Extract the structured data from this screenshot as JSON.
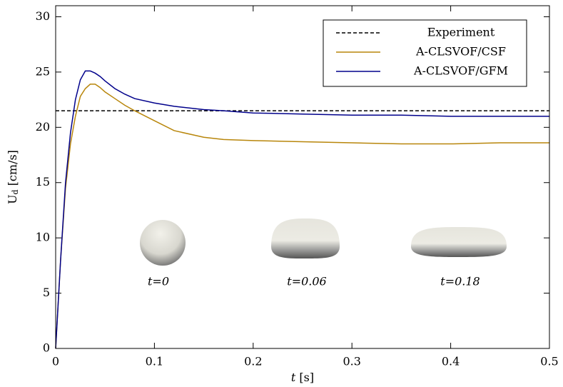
{
  "chart_data": {
    "type": "line",
    "x_label": "t [s]",
    "y_label": "Ud [cm/s]",
    "x": [
      0,
      0.005,
      0.01,
      0.015,
      0.02,
      0.025,
      0.03,
      0.035,
      0.04,
      0.045,
      0.05,
      0.06,
      0.07,
      0.08,
      0.1,
      0.12,
      0.15,
      0.17,
      0.2,
      0.25,
      0.3,
      0.35,
      0.4,
      0.45,
      0.5
    ],
    "hlines": [
      {
        "name": "Experiment",
        "color": "#000000",
        "value": 21.5,
        "linestyle": "dashed"
      }
    ],
    "series": [
      {
        "name": "A-CLSVOF/CSF",
        "color": "#b8860b",
        "values": [
          0,
          8,
          14.5,
          18.5,
          21,
          22.8,
          23.5,
          23.9,
          23.9,
          23.6,
          23.2,
          22.6,
          22,
          21.5,
          20.6,
          19.7,
          19.1,
          18.9,
          18.8,
          18.7,
          18.6,
          18.5,
          18.5,
          18.6,
          18.6
        ]
      },
      {
        "name": "A-CLSVOF/GFM",
        "color": "#00008b",
        "values": [
          0,
          8,
          15,
          19.5,
          22.5,
          24.3,
          25.1,
          25.1,
          24.9,
          24.6,
          24.2,
          23.5,
          23,
          22.6,
          22.2,
          21.9,
          21.6,
          21.5,
          21.3,
          21.2,
          21.1,
          21.1,
          21.0,
          21.0,
          21.0
        ]
      }
    ],
    "annotations": [
      "t=0",
      "t=0.06",
      "t=0.18"
    ],
    "xlim": [
      0,
      0.5
    ],
    "xticks": [
      0,
      0.1,
      0.2,
      0.3,
      0.4,
      0.5
    ],
    "ylim": [
      0,
      31
    ],
    "yticks": [
      0,
      5,
      10,
      15,
      20,
      25,
      30
    ],
    "legend": "upper right",
    "grid": false
  }
}
